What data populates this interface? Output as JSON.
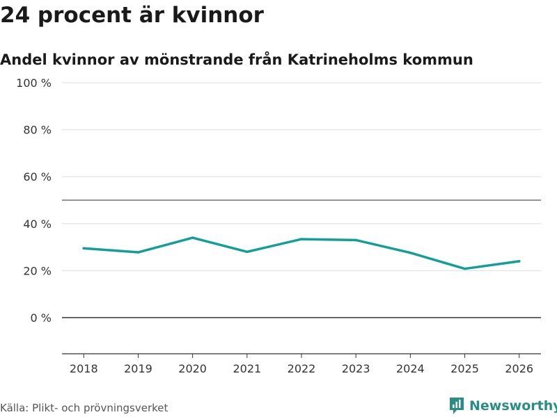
{
  "header": {
    "title": "24 procent är kvinnor",
    "subtitle": "Andel kvinnor av mönstrande från Katrineholms kommun"
  },
  "footer": {
    "source": "Källa: Plikt- och prövningsverket",
    "brand": "Newsworthy"
  },
  "colors": {
    "line": "#139e97",
    "grid": "#dddddd",
    "reference": "#555555",
    "zero": "#333333",
    "brand": "#2a8d85"
  },
  "chart_data": {
    "type": "line",
    "title": "24 procent är kvinnor",
    "subtitle": "Andel kvinnor av mönstrande från Katrineholms kommun",
    "xlabel": "",
    "ylabel": "",
    "x": [
      2018,
      2019,
      2020,
      2021,
      2022,
      2023,
      2024,
      2025,
      2026
    ],
    "x_tick_labels": [
      "2018",
      "2019",
      "2020",
      "2021",
      "2022",
      "2023",
      "2024",
      "2025",
      "2026"
    ],
    "series": [
      {
        "name": "Andel kvinnor",
        "values": [
          29.5,
          27.8,
          34.0,
          28.0,
          33.4,
          33.0,
          27.6,
          20.8,
          24.0
        ]
      }
    ],
    "y_ticks": [
      0,
      20,
      40,
      60,
      80,
      100
    ],
    "y_tick_labels": [
      "0 %",
      "20 %",
      "40 %",
      "60 %",
      "80 %",
      "100 %"
    ],
    "reference_line": 50,
    "ylim": [
      -15,
      100
    ],
    "xlim": [
      2017.6,
      2026.4
    ],
    "grid": true,
    "legend": "none"
  }
}
